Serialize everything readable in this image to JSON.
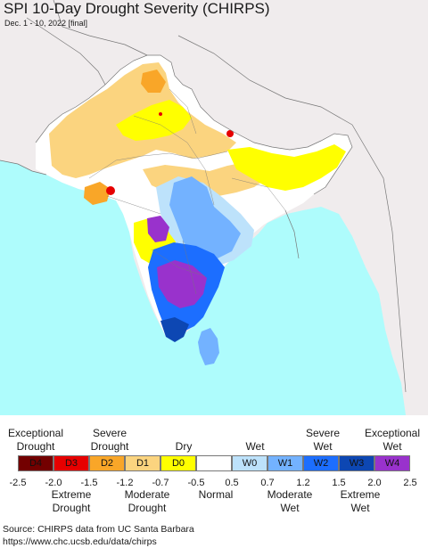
{
  "title": "SPI 10-Day Drought Severity (CHIRPS)",
  "subtitle": "Dec. 1 - 10, 2022 [final]",
  "colors": {
    "ocean": "#aefcfc",
    "land_background": "#f0eced",
    "normal": "#ffffff",
    "D0": "#ffff00",
    "D1": "#fbd47f",
    "D2": "#f9a628",
    "D3": "#e60000",
    "D4": "#730000",
    "W0": "#bde2fb",
    "W1": "#73b2ff",
    "W2": "#1c6eff",
    "W3": "#0d47b3",
    "W4": "#9932cc",
    "border": "#777777"
  },
  "legend": {
    "top_labels": [
      {
        "lines": [
          "Exceptional",
          "Drought"
        ]
      },
      {
        "lines": [
          "Severe",
          "Drought"
        ]
      },
      {
        "lines": [
          "Dry"
        ]
      },
      {
        "lines": [
          "Wet"
        ]
      },
      {
        "lines": [
          "Severe",
          "Wet"
        ]
      },
      {
        "lines": [
          "Exceptional",
          "Wet"
        ]
      }
    ],
    "categories": [
      {
        "code": "D4",
        "color": "#730000"
      },
      {
        "code": "D3",
        "color": "#e60000"
      },
      {
        "code": "D2",
        "color": "#f9a628"
      },
      {
        "code": "D1",
        "color": "#fbd47f"
      },
      {
        "code": "D0",
        "color": "#ffff00"
      },
      {
        "code": "",
        "color": "#ffffff"
      },
      {
        "code": "W0",
        "color": "#bde2fb"
      },
      {
        "code": "W1",
        "color": "#73b2ff"
      },
      {
        "code": "W2",
        "color": "#1c6eff"
      },
      {
        "code": "W3",
        "color": "#0d47b3"
      },
      {
        "code": "W4",
        "color": "#9932cc"
      }
    ],
    "ticks": [
      "-2.5",
      "-2.0",
      "-1.5",
      "-1.2",
      "-0.7",
      "-0.5",
      "0.5",
      "0.7",
      "1.2",
      "1.5",
      "2.0",
      "2.5"
    ],
    "bottom_labels": [
      {
        "lines": [
          "Extreme",
          "Drought"
        ]
      },
      {
        "lines": [
          "Moderate",
          "Drought"
        ]
      },
      {
        "lines": [
          "Normal"
        ]
      },
      {
        "lines": [
          "Moderate",
          "Wet"
        ]
      },
      {
        "lines": [
          "Extreme",
          "Wet"
        ]
      }
    ]
  },
  "source": {
    "line1": "Source: CHIRPS data from UC Santa Barbara",
    "line2": "https://www.chc.ucsb.edu/data/chirps"
  }
}
